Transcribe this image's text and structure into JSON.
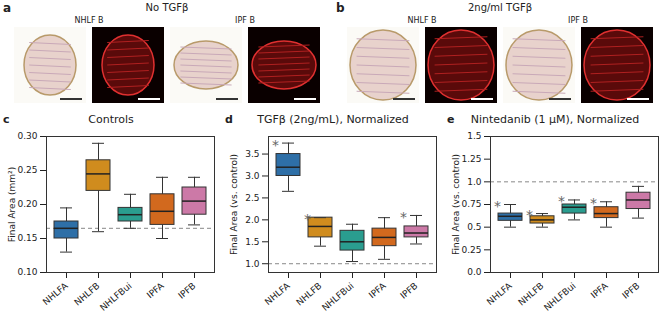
{
  "panels": [
    {
      "panel": "a",
      "title": "No TGFβ",
      "images": [
        "NHLF B",
        "IPF B"
      ]
    },
    {
      "panel": "b",
      "title": "2ng/ml TGFβ",
      "images": [
        "NHLF B",
        "IPF B"
      ]
    }
  ],
  "chart_data": [
    {
      "type": "box",
      "panel": "c",
      "title": "Controls",
      "y_label": "Final Area (mm²)",
      "categories": [
        "NHLFA",
        "NHLFB",
        "NHLFBui",
        "IPFA",
        "IPFB"
      ],
      "colors": [
        "#2e6fa7",
        "#d08c1e",
        "#2a9d8f",
        "#d2691e",
        "#cc79a7"
      ],
      "min": [
        0.13,
        0.16,
        0.165,
        0.15,
        0.17
      ],
      "q1": [
        0.15,
        0.22,
        0.175,
        0.17,
        0.185
      ],
      "median": [
        0.165,
        0.245,
        0.185,
        0.19,
        0.205
      ],
      "q3": [
        0.175,
        0.265,
        0.195,
        0.215,
        0.225
      ],
      "max": [
        0.195,
        0.29,
        0.215,
        0.24,
        0.24
      ],
      "annotations": [
        null,
        null,
        null,
        null,
        null
      ],
      "reference_line": 0.165,
      "ylim": [
        0.1,
        0.3
      ],
      "yticks": [
        {
          "value": 0.1,
          "label": "0.10"
        },
        0.15,
        {
          "value": 0.2,
          "label": "0.20"
        },
        0.25,
        {
          "value": 0.3,
          "label": "0.30"
        }
      ]
    },
    {
      "type": "box",
      "panel": "d",
      "title": "TGFβ (2ng/mL), Normalized",
      "y_label": "Final Area (vs. control)",
      "categories": [
        "NHLFA",
        "NHLFB",
        "NHLFBui",
        "IPFA",
        "IPFB"
      ],
      "colors": [
        "#2e6fa7",
        "#d08c1e",
        "#2a9d8f",
        "#d2691e",
        "#cc79a7"
      ],
      "min": [
        2.65,
        1.4,
        1.05,
        1.1,
        1.45
      ],
      "q1": [
        3.0,
        1.6,
        1.3,
        1.4,
        1.6
      ],
      "median": [
        3.2,
        1.85,
        1.5,
        1.6,
        1.7
      ],
      "q3": [
        3.5,
        2.05,
        1.75,
        1.8,
        1.85
      ],
      "max": [
        3.75,
        2.05,
        1.9,
        2.05,
        2.1
      ],
      "annotations": [
        "*",
        "*",
        null,
        null,
        "*"
      ],
      "reference_line": 1.0,
      "ylim": [
        0.8,
        3.9
      ],
      "yticks": [
        {
          "value": 1,
          "label": "1.0"
        },
        1.5,
        {
          "value": 2,
          "label": "2.0"
        },
        2.5,
        {
          "value": 3,
          "label": "3.0"
        },
        3.5
      ]
    },
    {
      "type": "box",
      "panel": "e",
      "title": "Nintedanib (1 μM), Normalized",
      "y_label": "Final Area (vs. control)",
      "categories": [
        "NHLFA",
        "NHLFB",
        "NHLFBui",
        "IPFA",
        "IPFB"
      ],
      "colors": [
        "#2e6fa7",
        "#d08c1e",
        "#2a9d8f",
        "#d2691e",
        "#cc79a7"
      ],
      "min": [
        0.5,
        0.5,
        0.58,
        0.5,
        0.6
      ],
      "q1": [
        0.57,
        0.54,
        0.65,
        0.6,
        0.7
      ],
      "median": [
        0.62,
        0.58,
        0.72,
        0.65,
        0.8
      ],
      "q3": [
        0.65,
        0.62,
        0.75,
        0.72,
        0.88
      ],
      "max": [
        0.75,
        0.65,
        0.8,
        0.78,
        0.95
      ],
      "annotations": [
        "*",
        "*",
        "*",
        "*",
        null
      ],
      "reference_line": 1.0,
      "ylim": [
        0,
        1.5
      ],
      "yticks": [
        {
          "value": 0,
          "label": "0.0"
        },
        0.25,
        {
          "value": 0.5,
          "label": "0.5"
        },
        0.75,
        {
          "value": 1,
          "label": "1.0"
        },
        1.25,
        {
          "value": 1.5,
          "label": "1.5"
        }
      ]
    }
  ]
}
